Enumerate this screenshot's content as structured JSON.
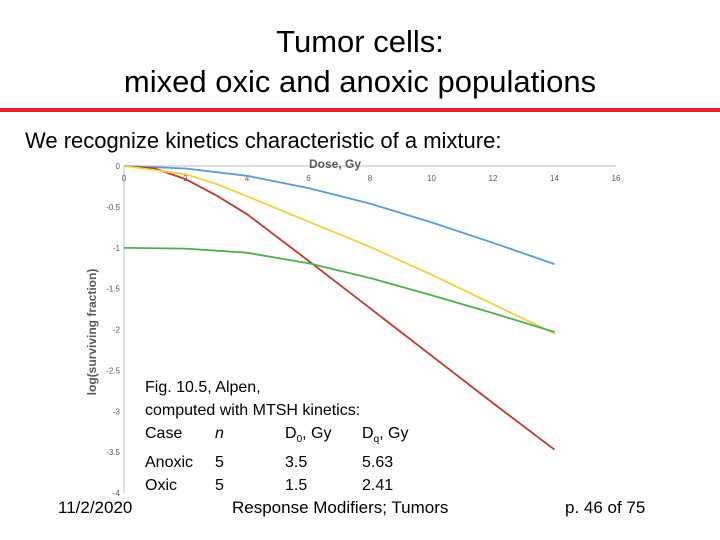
{
  "slide": {
    "title_line1": "Tumor cells:",
    "title_line2": "mixed oxic and anoxic populations",
    "subtitle": "We recognize kinetics characteristic of a mixture:",
    "accent_color": "#e8202a"
  },
  "caption": {
    "line1": "Fig. 10.5, Alpen,",
    "line2": "computed with MTSH kinetics:",
    "header": {
      "case": "Case",
      "n": "n",
      "d0_main": "D",
      "d0_sub": "0",
      "d0_unit": ", Gy",
      "dq_main": "D",
      "dq_sub": "q",
      "dq_unit": ", Gy"
    },
    "rows": [
      {
        "case": "Anoxic",
        "n": "5",
        "d0": "3.5",
        "dq": "5.63"
      },
      {
        "case": "Oxic",
        "n": "5",
        "d0": "1.5",
        "dq": "2.41"
      }
    ]
  },
  "footer": {
    "date": "11/2/2020",
    "center": "Response Modifiers; Tumors",
    "page": "p. 46 of 75"
  },
  "chart_data": {
    "type": "line",
    "xlabel": "Dose, Gy",
    "ylabel": "log(surviving fraction)",
    "xlim": [
      0,
      16
    ],
    "ylim": [
      -4,
      0
    ],
    "x_ticks": [
      "0",
      "2",
      "4",
      "6",
      "8",
      "10",
      "12",
      "14",
      "16"
    ],
    "y_ticks": [
      "0",
      "-0.5",
      "-1",
      "-1.5",
      "-2",
      "-2.5",
      "-3",
      "-3.5",
      "-4"
    ],
    "x_axis_position": "top",
    "grid": false,
    "series": [
      {
        "color": "#5b9bd5",
        "x": [
          0,
          2,
          4,
          6,
          8,
          10,
          12,
          14
        ],
        "y": [
          0,
          -0.03,
          -0.12,
          -0.27,
          -0.46,
          -0.69,
          -0.94,
          -1.2
        ]
      },
      {
        "color": "#c0392b",
        "x": [
          0,
          1,
          2,
          3,
          4,
          6,
          8,
          10,
          12,
          14
        ],
        "y": [
          0,
          -0.03,
          -0.16,
          -0.36,
          -0.59,
          -1.16,
          -1.74,
          -2.32,
          -2.9,
          -3.47
        ]
      },
      {
        "color": "#f4d03f",
        "x": [
          0,
          2,
          3,
          4,
          6,
          8,
          10,
          12,
          14
        ],
        "y": [
          0,
          -0.1,
          -0.22,
          -0.37,
          -0.68,
          -0.99,
          -1.33,
          -1.69,
          -2.05
        ]
      },
      {
        "color": "#4caf50",
        "x": [
          0,
          2,
          4,
          6,
          8,
          10,
          12,
          14
        ],
        "y": [
          -1.0,
          -1.01,
          -1.06,
          -1.19,
          -1.37,
          -1.58,
          -1.8,
          -2.03
        ]
      }
    ]
  }
}
